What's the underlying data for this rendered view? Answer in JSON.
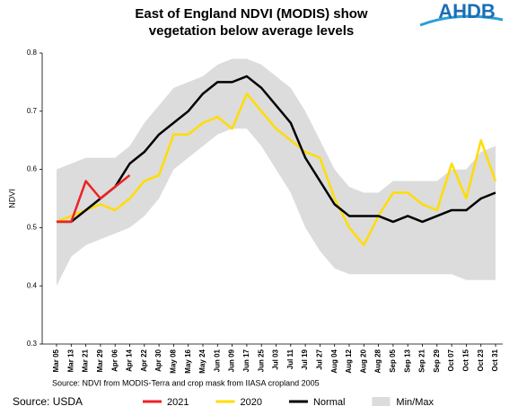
{
  "chart_data": {
    "type": "line",
    "title": [
      "East of England NDVI (MODIS) show",
      "vegetation below average levels"
    ],
    "logo": "AHDB",
    "y_label": "NDVI",
    "note": "Source: NDVI from MODIS-Terra and crop mask from IIASA cropland 2005",
    "source": "Source: USDA",
    "categories": [
      "Mar 05",
      "Mar 13",
      "Mar 21",
      "Mar 29",
      "Apr 06",
      "Apr 14",
      "Apr 22",
      "Apr 30",
      "May 08",
      "May 16",
      "May 24",
      "Jun 01",
      "Jun 09",
      "Jun 17",
      "Jun 25",
      "Jul 03",
      "Jul 11",
      "Jul 19",
      "Jul 27",
      "Aug 04",
      "Aug 12",
      "Aug 20",
      "Aug 28",
      "Sep 05",
      "Sep 13",
      "Sep 21",
      "Sep 29",
      "Oct 07",
      "Oct 15",
      "Oct 23",
      "Oct 31"
    ],
    "ylim": [
      0.3,
      0.8
    ],
    "yticks": [
      0.3,
      0.4,
      0.5,
      0.6,
      0.7,
      0.8
    ],
    "band": {
      "name": "Min/Max",
      "color": "#dcdcdc",
      "upper": [
        0.6,
        0.61,
        0.62,
        0.62,
        0.62,
        0.64,
        0.68,
        0.71,
        0.74,
        0.75,
        0.76,
        0.78,
        0.79,
        0.79,
        0.78,
        0.76,
        0.74,
        0.7,
        0.65,
        0.6,
        0.57,
        0.56,
        0.56,
        0.58,
        0.58,
        0.58,
        0.58,
        0.6,
        0.6,
        0.63,
        0.64
      ],
      "lower": [
        0.4,
        0.45,
        0.47,
        0.48,
        0.49,
        0.5,
        0.52,
        0.55,
        0.6,
        0.62,
        0.64,
        0.66,
        0.67,
        0.67,
        0.64,
        0.6,
        0.56,
        0.5,
        0.46,
        0.43,
        0.42,
        0.42,
        0.42,
        0.42,
        0.42,
        0.42,
        0.42,
        0.42,
        0.41,
        0.41,
        0.41
      ]
    },
    "series": [
      {
        "name": "2021",
        "color": "#ee2222",
        "values": [
          0.51,
          0.51,
          0.58,
          0.55,
          0.57,
          0.59,
          null,
          null,
          null,
          null,
          null,
          null,
          null,
          null,
          null,
          null,
          null,
          null,
          null,
          null,
          null,
          null,
          null,
          null,
          null,
          null,
          null,
          null,
          null,
          null,
          null
        ]
      },
      {
        "name": "2020",
        "color": "#ffdd00",
        "values": [
          0.51,
          0.52,
          0.53,
          0.54,
          0.53,
          0.55,
          0.58,
          0.59,
          0.66,
          0.66,
          0.68,
          0.69,
          0.67,
          0.73,
          0.7,
          0.67,
          0.65,
          0.63,
          0.62,
          0.55,
          0.5,
          0.47,
          0.52,
          0.56,
          0.56,
          0.54,
          0.53,
          0.61,
          0.55,
          0.65,
          0.58
        ]
      },
      {
        "name": "Normal",
        "color": "#000000",
        "values": [
          0.51,
          0.51,
          0.53,
          0.55,
          0.57,
          0.61,
          0.63,
          0.66,
          0.68,
          0.7,
          0.73,
          0.75,
          0.75,
          0.76,
          0.74,
          0.71,
          0.68,
          0.62,
          0.58,
          0.54,
          0.52,
          0.52,
          0.52,
          0.51,
          0.52,
          0.51,
          0.52,
          0.53,
          0.53,
          0.55,
          0.56
        ]
      }
    ],
    "legend_order": [
      "series.0",
      "series.1",
      "series.2",
      "band"
    ]
  }
}
